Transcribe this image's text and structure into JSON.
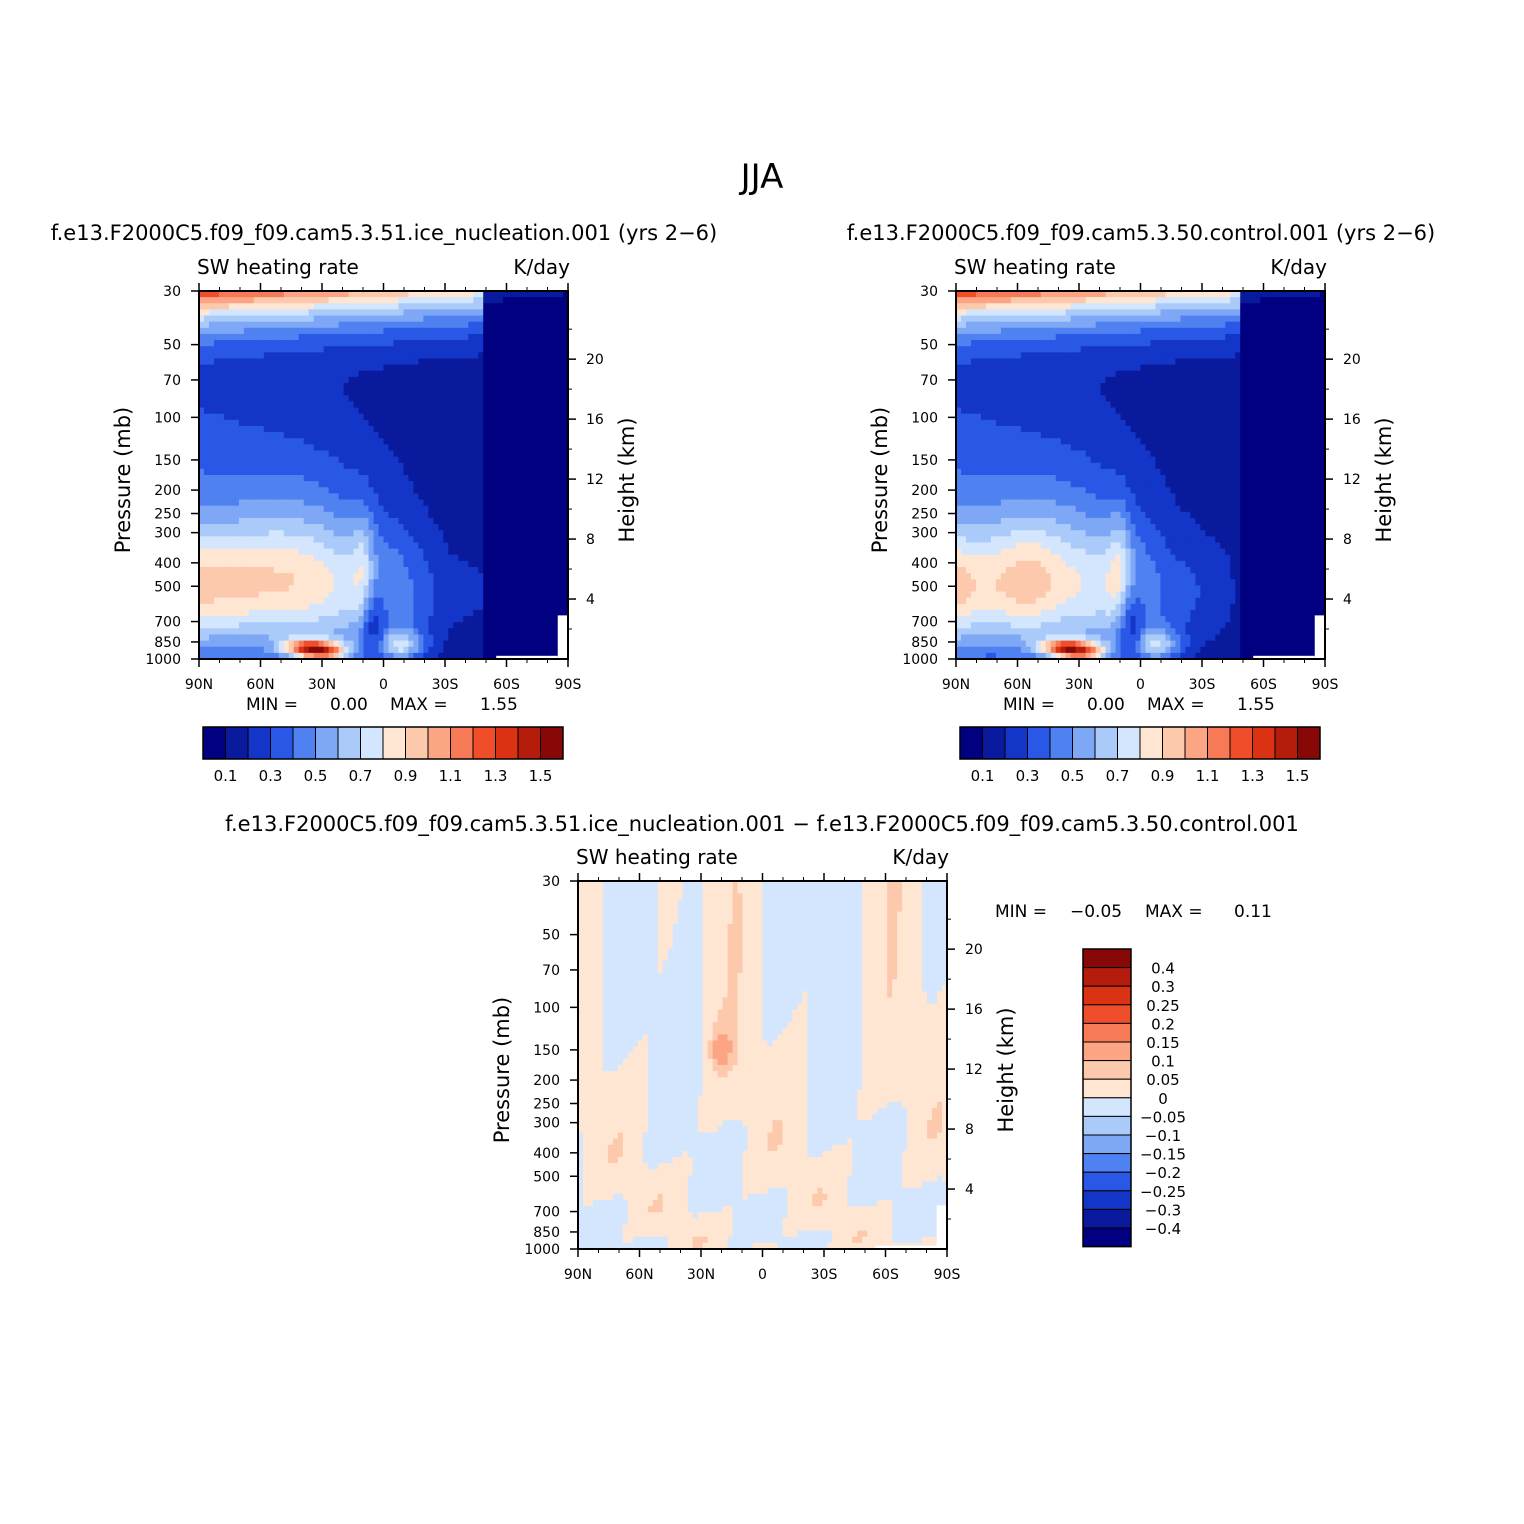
{
  "figure": {
    "title": "JJA"
  },
  "panels": [
    {
      "case_title": "f.e13.F2000C5.f09_f09.cam5.3.51.ice_nucleation.001 (yrs 2−6)",
      "left_string": "SW heating rate",
      "right_string": "K/day",
      "min_label": "MIN =",
      "min_value": "0.00",
      "max_label": "MAX =",
      "max_value": "1.55"
    },
    {
      "case_title": "f.e13.F2000C5.f09_f09.cam5.3.50.control.001 (yrs 2−6)",
      "left_string": "SW heating rate",
      "right_string": "K/day",
      "min_label": "MIN =",
      "min_value": "0.00",
      "max_label": "MAX =",
      "max_value": "1.55"
    },
    {
      "case_title": "f.e13.F2000C5.f09_f09.cam5.3.51.ice_nucleation.001 − f.e13.F2000C5.f09_f09.cam5.3.50.control.001",
      "left_string": "SW heating rate",
      "right_string": "K/day",
      "min_label": "MIN =",
      "min_value": "−0.05",
      "max_label": "MAX =",
      "max_value": "0.11"
    }
  ],
  "colors": {
    "abs_levels": [
      "#000080",
      "#0a1a9c",
      "#1436c8",
      "#2a58e6",
      "#4f82f0",
      "#7ea8f6",
      "#aacbfa",
      "#d3e6fd",
      "#fee6d3",
      "#fdc9ad",
      "#fba585",
      "#f77a56",
      "#f04e2a",
      "#da3212",
      "#b41d0c",
      "#880808"
    ],
    "diff_levels": [
      "#000080",
      "#0a1a9c",
      "#1436c8",
      "#2a58e6",
      "#4f82f0",
      "#7ea8f6",
      "#aacbfa",
      "#d3e6fd",
      "#fee6d3",
      "#fdc9ad",
      "#fba585",
      "#f77a56",
      "#f04e2a",
      "#da3212",
      "#b41d0c",
      "#880808"
    ]
  },
  "chart_data": [
    {
      "type": "heatmap",
      "title": "SW heating rate",
      "units": "K/day",
      "xlabel": "",
      "ylabel": "Pressure (mb)",
      "right_ylabel": "Height (km)",
      "x_ticks": [
        "90N",
        "60N",
        "30N",
        "0",
        "30S",
        "60S",
        "90S"
      ],
      "y_ticks": [
        30,
        50,
        70,
        100,
        150,
        200,
        250,
        300,
        400,
        500,
        700,
        850,
        1000
      ],
      "right_ticks": [
        20,
        16,
        12,
        8,
        4
      ],
      "min": 0.0,
      "max": 1.55,
      "colorbar_labels": [
        "0.1",
        "0.3",
        "0.5",
        "0.7",
        "0.9",
        "1.1",
        "1.3",
        "1.5"
      ]
    },
    {
      "type": "heatmap",
      "title": "SW heating rate",
      "units": "K/day",
      "xlabel": "",
      "ylabel": "Pressure (mb)",
      "right_ylabel": "Height (km)",
      "x_ticks": [
        "90N",
        "60N",
        "30N",
        "0",
        "30S",
        "60S",
        "90S"
      ],
      "y_ticks": [
        30,
        50,
        70,
        100,
        150,
        200,
        250,
        300,
        400,
        500,
        700,
        850,
        1000
      ],
      "right_ticks": [
        20,
        16,
        12,
        8,
        4
      ],
      "min": 0.0,
      "max": 1.55,
      "colorbar_labels": [
        "0.1",
        "0.3",
        "0.5",
        "0.7",
        "0.9",
        "1.1",
        "1.3",
        "1.5"
      ]
    },
    {
      "type": "heatmap",
      "title": "SW heating rate",
      "units": "K/day",
      "xlabel": "",
      "ylabel": "Pressure (mb)",
      "right_ylabel": "Height (km)",
      "x_ticks": [
        "90N",
        "60N",
        "30N",
        "0",
        "30S",
        "60S",
        "90S"
      ],
      "y_ticks": [
        30,
        50,
        70,
        100,
        150,
        200,
        250,
        300,
        400,
        500,
        700,
        850,
        1000
      ],
      "right_ticks": [
        20,
        16,
        12,
        8,
        4
      ],
      "min": -0.05,
      "max": 0.11,
      "colorbar_labels": [
        "0.4",
        "0.3",
        "0.25",
        "0.2",
        "0.15",
        "0.1",
        "0.05",
        "0",
        "−0.05",
        "−0.1",
        "−0.15",
        "−0.2",
        "−0.25",
        "−0.3",
        "−0.4"
      ]
    }
  ]
}
